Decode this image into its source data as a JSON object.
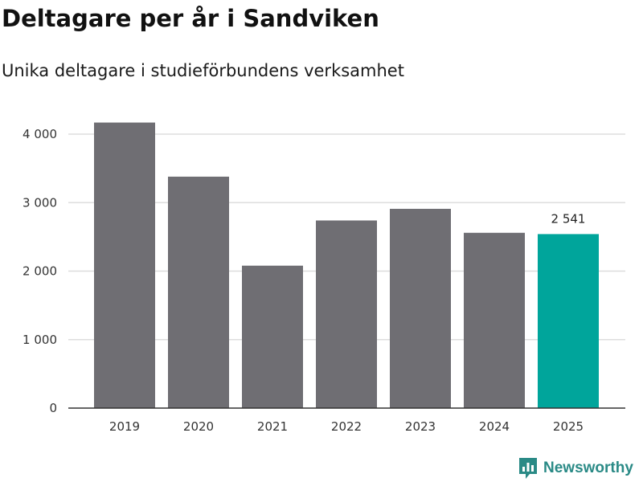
{
  "title": "Deltagare per år i Sandviken",
  "subtitle": "Unika deltagare i studieförbundens verksamhet",
  "brand": {
    "name": "Newsworthy",
    "color": "#2a8a86"
  },
  "colors": {
    "bar": "#6f6e73",
    "highlight": "#00a59b",
    "grid": "#dddddd",
    "axis": "#333333"
  },
  "chart_data": {
    "type": "bar",
    "title": "Deltagare per år i Sandviken",
    "subtitle": "Unika deltagare i studieförbundens verksamhet",
    "xlabel": "",
    "ylabel": "",
    "categories": [
      "2019",
      "2020",
      "2021",
      "2022",
      "2023",
      "2024",
      "2025"
    ],
    "values": [
      4170,
      3380,
      2080,
      2740,
      2910,
      2560,
      2541
    ],
    "highlight_index": 6,
    "data_labels": [
      {
        "index": 6,
        "text": "2 541"
      }
    ],
    "ylim": [
      0,
      4200
    ],
    "yticks": [
      0,
      1000,
      2000,
      3000,
      4000
    ],
    "ytick_labels": [
      "0",
      "1 000",
      "2 000",
      "3 000",
      "4 000"
    ],
    "grid": true,
    "legend": "none"
  }
}
